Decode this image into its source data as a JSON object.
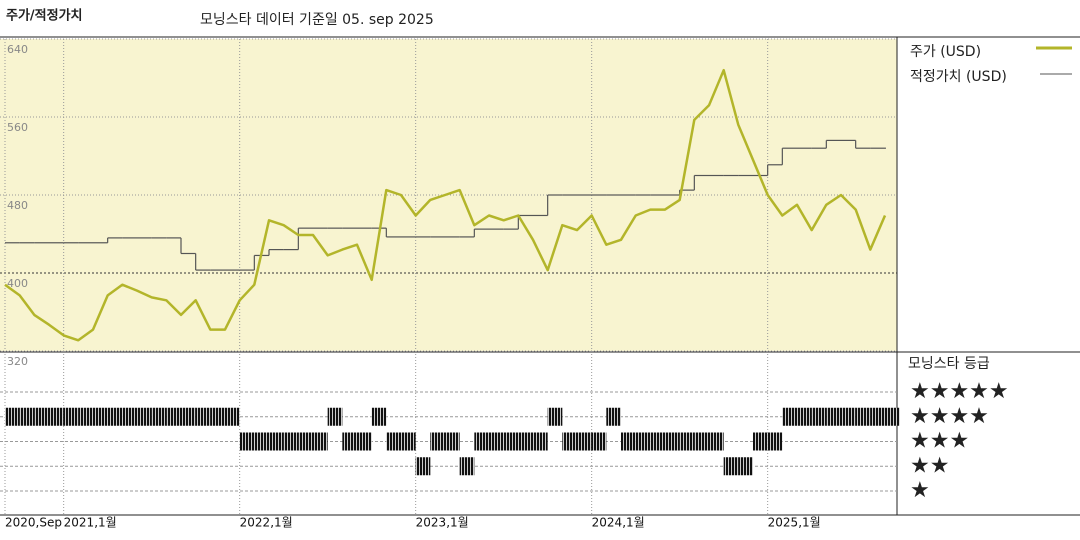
{
  "chart_data": {
    "type": "line",
    "title": "주가/적정가치",
    "subtitle": "모닝스타 데이터 기준일 05. sep 2025",
    "x": [
      "2020-09",
      "2020-10",
      "2020-11",
      "2020-12",
      "2021-01",
      "2021-02",
      "2021-03",
      "2021-04",
      "2021-05",
      "2021-06",
      "2021-07",
      "2021-08",
      "2021-09",
      "2021-10",
      "2021-11",
      "2021-12",
      "2022-01",
      "2022-02",
      "2022-03",
      "2022-04",
      "2022-05",
      "2022-06",
      "2022-07",
      "2022-08",
      "2022-09",
      "2022-10",
      "2022-11",
      "2022-12",
      "2023-01",
      "2023-02",
      "2023-03",
      "2023-04",
      "2023-05",
      "2023-06",
      "2023-07",
      "2023-08",
      "2023-09",
      "2023-10",
      "2023-11",
      "2023-12",
      "2024-01",
      "2024-02",
      "2024-03",
      "2024-04",
      "2024-05",
      "2024-06",
      "2024-07",
      "2024-08",
      "2024-09",
      "2024-10",
      "2024-11",
      "2024-12",
      "2025-01",
      "2025-02",
      "2025-03",
      "2025-04",
      "2025-05",
      "2025-06",
      "2025-07",
      "2025-08",
      "2025-09"
    ],
    "xticks": [
      {
        "value": "2020-09",
        "label": "2020,Sep"
      },
      {
        "value": "2021-01",
        "label": "2021,1월"
      },
      {
        "value": "2022-01",
        "label": "2022,1월"
      },
      {
        "value": "2023-01",
        "label": "2023,1월"
      },
      {
        "value": "2024-01",
        "label": "2024,1월"
      },
      {
        "value": "2025-01",
        "label": "2025,1월"
      }
    ],
    "ylim": [
      320,
      640
    ],
    "yticks": [
      320,
      400,
      480,
      560,
      640
    ],
    "grid": true,
    "series": [
      {
        "name": "주가 (USD)",
        "color": "#b3b52a",
        "values": [
          388,
          377,
          357,
          347,
          336,
          331,
          342,
          377,
          388,
          382,
          375,
          372,
          357,
          372,
          342,
          342,
          372,
          388,
          454,
          449,
          439,
          439,
          418,
          424,
          429,
          393,
          485,
          480,
          459,
          475,
          480,
          485,
          449,
          459,
          454,
          459,
          434,
          403,
          449,
          444,
          459,
          429,
          434,
          459,
          465,
          465,
          475,
          557,
          572,
          608,
          552,
          516,
          480,
          459,
          470,
          444,
          470,
          480,
          465,
          424,
          459
        ]
      },
      {
        "name": "적정가치 (USD)",
        "color": "#555555",
        "values": [
          431,
          431,
          431,
          431,
          431,
          431,
          431,
          436,
          436,
          436,
          436,
          436,
          420,
          403,
          403,
          403,
          403,
          418,
          424,
          424,
          446,
          446,
          446,
          446,
          446,
          446,
          437,
          437,
          437,
          437,
          437,
          437,
          445,
          445,
          445,
          459,
          459,
          480,
          480,
          480,
          480,
          480,
          480,
          480,
          480,
          480,
          485,
          500,
          500,
          500,
          500,
          500,
          511,
          528,
          528,
          528,
          536,
          536,
          528,
          528,
          528
        ]
      }
    ],
    "ratings": {
      "title": "모닝스타 등급",
      "ticks": [
        {
          "value": 5,
          "label": "★★★★★"
        },
        {
          "value": 4,
          "label": "★★★★"
        },
        {
          "value": 3,
          "label": "★★★"
        },
        {
          "value": 2,
          "label": "★★"
        },
        {
          "value": 1,
          "label": "★"
        }
      ],
      "values": [
        4,
        4,
        4,
        4,
        4,
        4,
        4,
        4,
        4,
        4,
        4,
        4,
        4,
        4,
        4,
        4,
        3,
        3,
        3,
        3,
        3,
        3,
        4,
        3,
        3,
        4,
        3,
        3,
        2,
        3,
        3,
        2,
        3,
        3,
        3,
        3,
        3,
        4,
        3,
        3,
        3,
        4,
        3,
        3,
        3,
        3,
        3,
        3,
        3,
        2,
        2,
        3,
        3,
        4,
        4,
        4,
        4,
        4,
        4,
        4,
        4
      ]
    }
  }
}
